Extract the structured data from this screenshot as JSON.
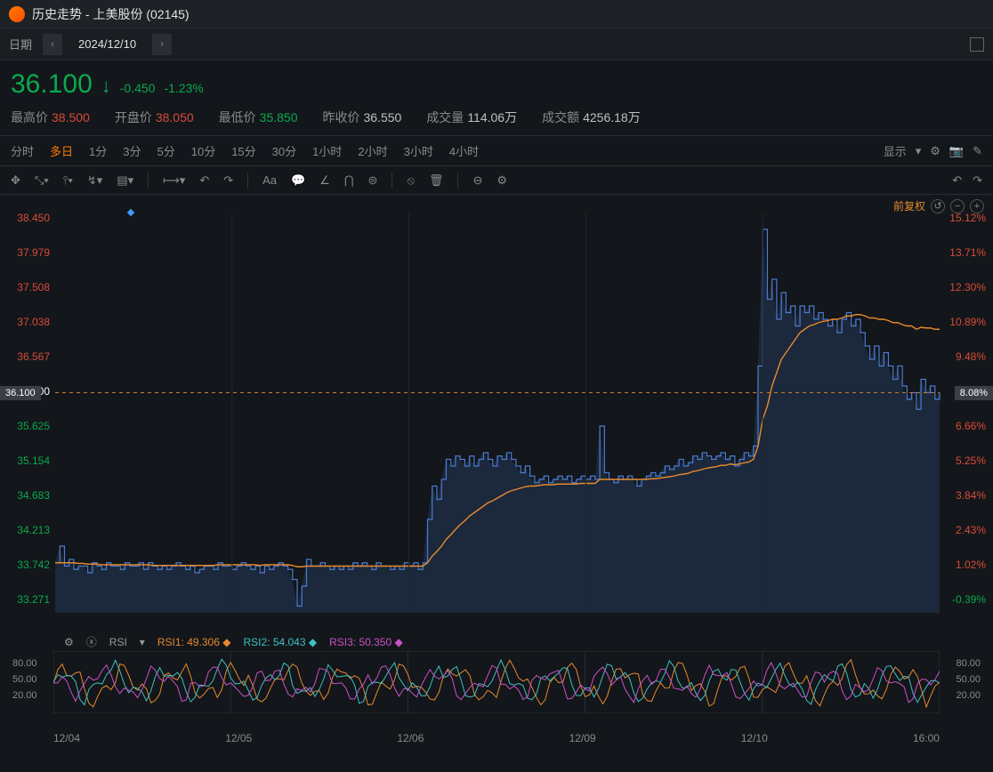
{
  "header": {
    "title": "历史走势 - 上美股份  (02145)"
  },
  "datebar": {
    "label": "日期",
    "date": "2024/12/10"
  },
  "price": {
    "last": "36.100",
    "arrow": "↓",
    "change": "-0.450",
    "pct": "-1.23%",
    "color": "#0aaa4f"
  },
  "stats": {
    "high_lbl": "最高价",
    "high": "38.500",
    "open_lbl": "开盘价",
    "open": "38.050",
    "low_lbl": "最低价",
    "low": "35.850",
    "prev_lbl": "昨收价",
    "prev": "36.550",
    "vol_lbl": "成交量",
    "vol": "114.06万",
    "amt_lbl": "成交额",
    "amt": "4256.18万"
  },
  "timeframes": {
    "items": [
      "分时",
      "多日",
      "1分",
      "3分",
      "5分",
      "10分",
      "15分",
      "30分",
      "1小时",
      "2小时",
      "3小时",
      "4小时"
    ],
    "active_idx": 1,
    "show_label": "显示",
    "adj_label": "前复权"
  },
  "tools": {
    "items": [
      "✥",
      "⤡▾",
      "⫯▾",
      "↯▾",
      "▤▾",
      "⟼▾",
      "↶",
      "↷",
      "Aa",
      "💬",
      "∠",
      "⋂",
      "⊜",
      "⦸",
      "🗑",
      "⊖",
      "⚙"
    ]
  },
  "chart": {
    "type": "line",
    "xlim": [
      0,
      1000
    ],
    "ylim": [
      32.8,
      38.8
    ],
    "current_line_y": 36.1,
    "current_line_color": "#c77d2e",
    "y_left_ticks": [
      "38.450",
      "37.979",
      "37.508",
      "37.038",
      "36.567",
      "36.100",
      "35.625",
      "35.154",
      "34.683",
      "34.213",
      "33.742",
      "33.271"
    ],
    "y_right_ticks": [
      "15.12%",
      "13.71%",
      "12.30%",
      "10.89%",
      "9.48%",
      "8.08%",
      "6.66%",
      "5.25%",
      "3.84%",
      "2.43%",
      "1.02%",
      "-0.39%"
    ],
    "y_right_colors": [
      "#d94b3a",
      "#d94b3a",
      "#d94b3a",
      "#d94b3a",
      "#d94b3a",
      "#d94b3a",
      "#d94b3a",
      "#d94b3a",
      "#d94b3a",
      "#d94b3a",
      "#d94b3a",
      "#0aaa4f"
    ],
    "left_tag": "36.100",
    "right_tag": "8.08%",
    "x_dates": [
      "12/04",
      "12/05",
      "12/06",
      "12/09",
      "12/10",
      "16:00"
    ],
    "price_color": "#4a7bd1",
    "area_fill": "rgba(74,123,209,0.18)",
    "ma_color": "#e58a2e",
    "background": "#13161a",
    "marker": {
      "x": 85,
      "color": "#3aa0ff"
    },
    "price_path": "33.55 33.8 33.5 33.6 33.45 33.5 33.5 33.4 33.55 33.5 33.45 33.55 33.5 33.5 33.45 33.55 33.5 33.5 33.55 33.45 33.55 33.5 33.45 33.5 33.45 33.5 33.55 33.5 33.45 33.5 33.4 33.45 33.5 33.5 33.45 33.55 33.5 33.5 33.45 33.5 33.55 33.5 33.45 33.5 33.4 33.5 33.45 33.5 33.55 33.5 33.45 33.3 32.9 33.2 33.6 33.5 33.5 33.55 33.5 33.45 33.5 33.45 33.5 33.45 33.55 33.5 33.55 33.5 33.45 33.55 33.5 33.5 33.45 33.5 33.45 33.55 33.5 33.55 33.45 33.55 34.2 34.7 34.5 34.8 35.1 35.0 35.15 35.1 35.0 35.15 35.0 35.1 35.2 35.1 35.0 35.15 35.1 35.2 35.1 35.0 34.9 35.0 34.85 34.75 34.8 34.85 34.75 34.8 34.85 34.8 34.85 34.75 34.8 34.85 34.8 34.85 34.8 35.6 34.9 34.8 34.75 34.85 34.8 34.85 34.8 34.7 34.8 34.85 34.9 34.85 34.9 35.0 34.95 35.0 35.1 35.0 35.05 35.15 35.1 35.2 35.15 35.1 35.15 35.2 35.1 35.15 35.0 35.1 35.2 35.15 35.3 36.5 38.55 37.5 37.8 37.2 37.6 37.3 37.4 37.1 37.4 37.3 37.4 37.2 37.3 37.2 37.1 37.2 37.0 37.2 37.3 37.1 37.2 37.0 36.8 36.6 36.8 36.5 36.7 36.5 36.3 36.5 36.2 36.0 36.1 35.85 36.3 36.1 36.2 36.0 36.1",
    "ma_path": "33.55 33.55 33.55 33.55 33.55 33.54 33.54 33.53 33.53 33.53 33.52 33.52 33.52 33.52 33.52 33.52 33.52 33.52 33.52 33.52 33.52 33.51 33.51 33.51 33.51 33.51 33.51 33.51 33.51 33.51 33.51 33.51 33.51 33.51 33.51 33.52 33.52 33.52 33.52 33.52 33.52 33.52 33.52 33.52 33.51 33.52 33.52 33.52 33.52 33.52 33.52 33.51 33.49 33.49 33.5 33.5 33.5 33.5 33.5 33.5 33.5 33.5 33.5 33.5 33.5 33.5 33.5 33.5 33.5 33.5 33.5 33.5 33.5 33.5 33.5 33.5 33.5 33.5 33.5 33.5 33.55 33.65 33.72 33.8 33.9 33.97 34.05 34.12 34.18 34.25 34.3 34.35 34.4 34.45 34.48 34.52 34.56 34.6 34.63 34.65 34.67 34.69 34.7 34.7 34.71 34.72 34.72 34.72 34.73 34.73 34.73 34.73 34.73 34.74 34.74 34.74 34.74 34.8 34.8 34.8 34.8 34.8 34.8 34.8 34.8 34.8 34.8 34.8 34.81 34.81 34.82 34.83 34.84 34.85 34.87 34.88 34.89 34.92 34.93 34.95 34.97 34.98 34.99 35.01 35.01 35.03 35.02 35.03 35.05 35.06 35.1 35.3 35.7 35.9 36.2 36.4 36.6 36.7 36.8 36.9 37.0 37.05 37.1 37.12 37.15 37.17 37.18 37.2 37.2 37.22 37.25 37.25 37.27 37.27 37.25 37.22 37.22 37.2 37.2 37.18 37.15 37.15 37.12 37.1 37.1 37.05 37.08 37.07 37.07 37.05 37.05"
  },
  "rsi": {
    "title": "RSI",
    "r1_lbl": "RSI1:",
    "r1": "49.306",
    "r1_color": "#e58a2e",
    "r2_lbl": "RSI2:",
    "r2": "54.043",
    "r2_color": "#3dc1c1",
    "r3_lbl": "RSI3:",
    "r3": "50.350",
    "r3_color": "#c951c9",
    "yticks_left": [
      "80.00",
      "50.00",
      "20.00"
    ],
    "yticks_right": [
      "80.00",
      "50.00",
      "20.00"
    ],
    "ylim": [
      0,
      100
    ]
  }
}
